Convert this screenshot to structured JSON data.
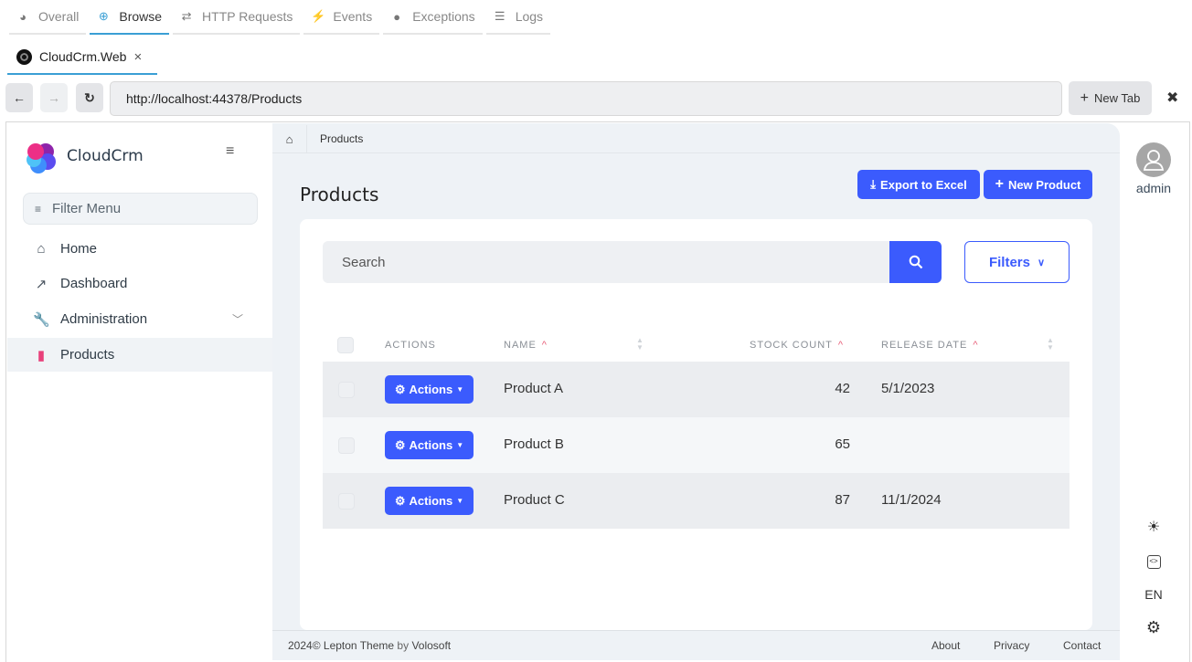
{
  "top_nav": [
    {
      "label": "Overall",
      "icon": "palette-icon"
    },
    {
      "label": "Browse",
      "icon": "globe-icon",
      "active": true
    },
    {
      "label": "HTTP Requests",
      "icon": "arrows-exchange-icon"
    },
    {
      "label": "Events",
      "icon": "bolt-icon"
    },
    {
      "label": "Exceptions",
      "icon": "exclamation-circle-icon"
    },
    {
      "label": "Logs",
      "icon": "list-icon"
    }
  ],
  "browser": {
    "tab_title": "CloudCrm.Web",
    "url": "http://localhost:44378/Products",
    "new_tab": "New Tab"
  },
  "sidebar": {
    "brand": "CloudCrm",
    "filter_placeholder": "Filter Menu",
    "items": [
      {
        "label": "Home",
        "icon": "home-icon"
      },
      {
        "label": "Dashboard",
        "icon": "chart-line-icon"
      },
      {
        "label": "Administration",
        "icon": "wrench-icon"
      },
      {
        "label": "Products",
        "icon": "file-icon",
        "active": true
      }
    ]
  },
  "breadcrumb": {
    "current": "Products"
  },
  "page": {
    "title": "Products",
    "export_label": "Export to Excel",
    "new_label": "New Product",
    "search_placeholder": "Search",
    "filters_label": "Filters"
  },
  "table": {
    "headers": [
      "ACTIONS",
      "NAME",
      "STOCK COUNT",
      "RELEASE DATE"
    ],
    "action_label": "Actions",
    "rows": [
      {
        "name": "Product A",
        "stock": "42",
        "release": "5/1/2023"
      },
      {
        "name": "Product B",
        "stock": "65",
        "release": ""
      },
      {
        "name": "Product C",
        "stock": "87",
        "release": "11/1/2024"
      }
    ]
  },
  "footer": {
    "year": "2024©",
    "theme": "Lepton Theme",
    "by": "by",
    "company": "Volosoft",
    "links": [
      "About",
      "Privacy",
      "Contact"
    ]
  },
  "rail": {
    "user": "admin",
    "language": "EN"
  },
  "colors": {
    "primary": "#3b5bfd",
    "browser_accent": "#3a9fd5",
    "sort_active": "#e8607a"
  }
}
